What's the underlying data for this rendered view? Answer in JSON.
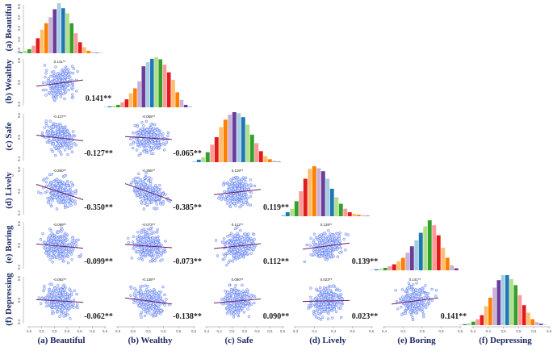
{
  "chart_data": {
    "type": "scatter-matrix",
    "variables": [
      "(a) Beautiful",
      "(b) Wealthy",
      "(c) Safe",
      "(d) Lively",
      "(e) Boring",
      "(f) Depressing"
    ],
    "significance_marker": "**",
    "correlations": [
      {
        "row": 1,
        "col": 0,
        "r": 0.141,
        "label": "0.141**"
      },
      {
        "row": 2,
        "col": 0,
        "r": -0.127,
        "label": "-0.127**"
      },
      {
        "row": 2,
        "col": 1,
        "r": -0.065,
        "label": "-0.065**"
      },
      {
        "row": 3,
        "col": 0,
        "r": -0.35,
        "label": "-0.350**"
      },
      {
        "row": 3,
        "col": 1,
        "r": -0.385,
        "label": "-0.385**"
      },
      {
        "row": 3,
        "col": 2,
        "r": 0.119,
        "label": "0.119**"
      },
      {
        "row": 4,
        "col": 0,
        "r": -0.099,
        "label": "-0.099**"
      },
      {
        "row": 4,
        "col": 1,
        "r": -0.073,
        "label": "-0.073**"
      },
      {
        "row": 4,
        "col": 2,
        "r": 0.112,
        "label": "0.112**"
      },
      {
        "row": 4,
        "col": 3,
        "r": 0.139,
        "label": "0.139**"
      },
      {
        "row": 5,
        "col": 0,
        "r": -0.062,
        "label": "-0.062**"
      },
      {
        "row": 5,
        "col": 1,
        "r": -0.138,
        "label": "-0.138**"
      },
      {
        "row": 5,
        "col": 2,
        "r": 0.09,
        "label": "0.090**"
      },
      {
        "row": 5,
        "col": 3,
        "r": 0.023,
        "label": "0.023**"
      },
      {
        "row": 5,
        "col": 4,
        "r": 0.141,
        "label": "0.141**"
      }
    ],
    "histograms": [
      [
        0.01,
        0.02,
        0.05,
        0.08,
        0.15,
        0.3,
        0.47,
        0.6,
        0.72,
        0.88,
        1.0,
        0.9,
        0.8,
        0.6,
        0.4,
        0.22,
        0.12,
        0.05,
        0.02,
        0.01,
        0.01
      ],
      [
        0.01,
        0.02,
        0.03,
        0.05,
        0.1,
        0.16,
        0.28,
        0.38,
        0.52,
        0.82,
        0.9,
        0.97,
        1.0,
        0.96,
        0.85,
        0.7,
        0.55,
        0.3,
        0.15,
        0.05,
        0.02
      ],
      [
        0.02,
        0.05,
        0.1,
        0.2,
        0.35,
        0.5,
        0.7,
        0.85,
        0.95,
        1.0,
        0.98,
        0.9,
        0.75,
        0.55,
        0.38,
        0.22,
        0.12,
        0.06,
        0.03,
        0.01
      ],
      [
        0.03,
        0.08,
        0.15,
        0.3,
        0.5,
        0.75,
        0.95,
        1.0,
        0.96,
        0.9,
        0.75,
        0.55,
        0.38,
        0.25,
        0.15,
        0.08,
        0.05,
        0.03,
        0.02,
        0.01
      ],
      [
        0.01,
        0.02,
        0.03,
        0.05,
        0.08,
        0.12,
        0.18,
        0.25,
        0.35,
        0.48,
        0.6,
        0.75,
        0.88,
        1.0,
        0.9,
        0.7,
        0.45,
        0.25,
        0.1,
        0.04
      ],
      [
        0.01,
        0.02,
        0.04,
        0.07,
        0.12,
        0.2,
        0.38,
        0.55,
        0.75,
        0.9,
        1.0,
        1.0,
        0.92,
        0.8,
        0.6,
        0.4,
        0.25,
        0.12,
        0.06,
        0.03,
        0.01
      ]
    ],
    "palette": [
      "#A6CEE3",
      "#1F78B4",
      "#B2DF8A",
      "#33A02C",
      "#FB9A99",
      "#E31A1C",
      "#FDBF6F",
      "#FF7F00",
      "#CAB2D6",
      "#6A3D9A"
    ],
    "point_color": "#4a6cf0",
    "fit_line_color": "#6a1f6a",
    "x_ticks": [
      [
        "0,5",
        "0,5",
        "0,5",
        "0,5",
        "0,6",
        "0,6",
        "0,6"
      ],
      [
        "0,5",
        "0,5",
        "0,5",
        "0,6",
        "0,6",
        "0,6"
      ],
      [
        "0,4",
        "0,4",
        "0,5",
        "0,5",
        "0,5",
        "0,5",
        "0,6"
      ],
      [
        "0,3",
        "0,4",
        "0,4",
        "0,5",
        "0,5"
      ],
      [
        "0,4",
        "0,4",
        "0,5",
        "0,5",
        "0,5"
      ],
      [
        "0,4",
        "0,4",
        "0,5",
        "0,5",
        "0,5",
        "0,6"
      ]
    ],
    "y_ticks": [
      [
        "0,6",
        "0,6",
        "0,5",
        "0,5",
        "0,5"
      ],
      [
        "0,6",
        "0,6",
        "0,5"
      ],
      [
        "0,6",
        "0,5",
        "0,4"
      ],
      [
        "0,6",
        "0,5",
        "0,4"
      ],
      [
        "0,6",
        "0,5",
        "0,4"
      ],
      [
        "0,6",
        "0,5",
        "0,4"
      ]
    ]
  }
}
